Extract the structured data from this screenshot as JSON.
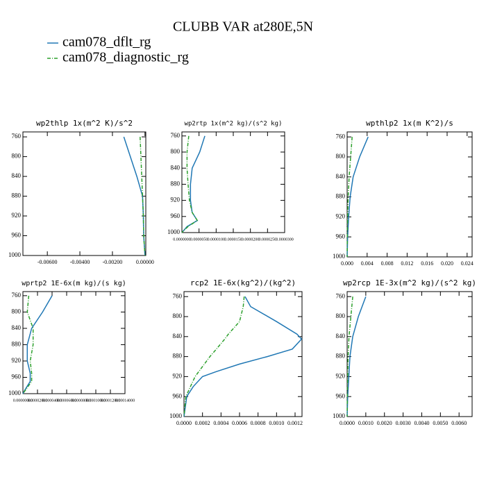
{
  "title": "CLUBB VAR at280E,5N",
  "legend": [
    {
      "name": "cam078_dflt_rg",
      "color": "#1f77b4",
      "dash": "none"
    },
    {
      "name": "cam078_diagnostic_rg",
      "color": "#2ca02c",
      "dash": "5 2 1 2"
    }
  ],
  "chart_data": [
    {
      "type": "line",
      "title": "wp2thlp  1x(m^2 K)/s^2",
      "y": [
        760,
        800,
        840,
        880,
        920,
        960,
        990,
        1000
      ],
      "ylim": [
        750,
        1000
      ],
      "y_reversed": true,
      "yticks": [
        760,
        800,
        840,
        880,
        920,
        960,
        1000
      ],
      "xlim": [
        -0.0075,
        5e-05
      ],
      "xticks": [
        {
          "value": -0.006,
          "label": "-0.00600"
        },
        {
          "value": -0.004,
          "label": "-0.00400"
        },
        {
          "value": -0.002,
          "label": "-0.00200"
        },
        {
          "value": 0,
          "label": "0.00000"
        }
      ],
      "series": [
        {
          "values": [
            -0.0013,
            -0.0009,
            -0.0005,
            -0.00015,
            -0.0001,
            -8e-05,
            -2e-05,
            0
          ]
        },
        {
          "values": [
            -0.0003,
            -0.00025,
            -0.0002,
            -0.00015,
            -0.0001,
            -8e-05,
            -2e-05,
            0
          ]
        }
      ]
    },
    {
      "type": "line",
      "title": "wp2rtp  1x(m^2 kg)/(s^2 kg)",
      "y": [
        760,
        800,
        840,
        880,
        920,
        950,
        970,
        985,
        995,
        1000
      ],
      "ylim": [
        750,
        1000
      ],
      "y_reversed": true,
      "yticks": [
        760,
        800,
        840,
        880,
        920,
        960,
        1000
      ],
      "xlim": [
        0,
        3e-05
      ],
      "xticks": [
        {
          "value": 0,
          "label": "0.0000000"
        },
        {
          "value": 5e-06,
          "label": "0.0000050"
        },
        {
          "value": 1e-05,
          "label": "0.0000100"
        },
        {
          "value": 1.5e-05,
          "label": "0.0000150"
        },
        {
          "value": 2e-05,
          "label": "0.0000200"
        },
        {
          "value": 2.5e-05,
          "label": "0.0000250"
        },
        {
          "value": 3e-05,
          "label": "0.0000300"
        }
      ],
      "series": [
        {
          "values": [
            6.7e-06,
            5.2e-06,
            3e-06,
            2.5e-06,
            2.5e-06,
            3e-06,
            4.5e-06,
            1.5e-06,
            5e-07,
            0
          ]
        },
        {
          "values": [
            2e-06,
            1.5e-06,
            1.5e-06,
            1.8e-06,
            2.2e-06,
            3e-06,
            4.5e-06,
            1.8e-06,
            5e-07,
            0
          ]
        }
      ]
    },
    {
      "type": "line",
      "title": "wpthlp2  1x(m K^2)/s",
      "y": [
        760,
        800,
        840,
        880,
        920,
        960,
        1000
      ],
      "ylim": [
        750,
        1000
      ],
      "y_reversed": true,
      "yticks": [
        760,
        800,
        840,
        880,
        920,
        960,
        1000
      ],
      "xlim": [
        0,
        0.025
      ],
      "xticks": [
        {
          "value": 0,
          "label": "0.000"
        },
        {
          "value": 0.004,
          "label": "0.004"
        },
        {
          "value": 0.008,
          "label": "0.008"
        },
        {
          "value": 0.012,
          "label": "0.012"
        },
        {
          "value": 0.016,
          "label": "0.016"
        },
        {
          "value": 0.02,
          "label": "0.020"
        },
        {
          "value": 0.024,
          "label": "0.024"
        }
      ],
      "series": [
        {
          "values": [
            0.0042,
            0.0025,
            0.0012,
            0.0006,
            0.0003,
            0.0001,
            0
          ]
        },
        {
          "values": [
            0.001,
            0.0007,
            0.0004,
            0.0002,
            0.0001,
            3e-05,
            0
          ]
        }
      ]
    },
    {
      "type": "line",
      "title": "wprtp2  1E-6x(m kg)/(s kg)",
      "y": [
        760,
        800,
        840,
        880,
        920,
        950,
        970,
        990,
        1000
      ],
      "ylim": [
        750,
        1000
      ],
      "y_reversed": true,
      "yticks": [
        760,
        800,
        840,
        880,
        920,
        960,
        1000
      ],
      "xlim": [
        0,
        0.00014
      ],
      "xticks": [
        {
          "value": 0,
          "label": "0.00000000"
        },
        {
          "value": 2e-05,
          "label": "0.00002000"
        },
        {
          "value": 4e-05,
          "label": "0.00004000"
        },
        {
          "value": 6e-05,
          "label": "0.00006000"
        },
        {
          "value": 8e-05,
          "label": "0.00008000"
        },
        {
          "value": 0.0001,
          "label": "0.00010000"
        },
        {
          "value": 0.00012,
          "label": "0.00012000"
        },
        {
          "value": 0.00014,
          "label": "0.00014000"
        }
      ],
      "series": [
        {
          "values": [
            4e-05,
            2.7e-05,
            1.2e-05,
            6e-06,
            6e-06,
            1e-05,
            1e-05,
            3e-06,
            0
          ]
        },
        {
          "values": [
            8e-06,
            6e-06,
            1.4e-05,
            1.4e-05,
            1e-05,
            1.2e-05,
            1.2e-05,
            4e-06,
            0
          ]
        }
      ]
    },
    {
      "type": "line",
      "title": "rcp2  1E-6x(kg^2)/(kg^2)",
      "y": [
        760,
        780,
        810,
        835,
        845,
        865,
        880,
        895,
        910,
        920,
        940,
        960,
        1000
      ],
      "ylim": [
        750,
        1000
      ],
      "y_reversed": true,
      "yticks": [
        760,
        800,
        840,
        880,
        920,
        960,
        1000
      ],
      "xlim": [
        0,
        0.001275
      ],
      "xticks": [
        {
          "value": 0,
          "label": "0.0000"
        },
        {
          "value": 0.0002,
          "label": "0.0002"
        },
        {
          "value": 0.0004,
          "label": "0.0004"
        },
        {
          "value": 0.0006,
          "label": "0.0006"
        },
        {
          "value": 0.0008,
          "label": "0.0008"
        },
        {
          "value": 0.001,
          "label": "0.0010"
        },
        {
          "value": 0.0012,
          "label": "0.0012"
        }
      ],
      "series": [
        {
          "values": [
            0.00066,
            0.00072,
            0.001,
            0.00122,
            0.00127,
            0.00117,
            0.0009,
            0.0006,
            0.00035,
            0.0002,
            0.0001,
            3e-05,
            0
          ]
        },
        {
          "values": [
            0.00065,
            0.00064,
            0.0006,
            0.00048,
            0.00044,
            0.00035,
            0.00028,
            0.00022,
            0.00016,
            0.00012,
            7e-05,
            2e-05,
            0
          ]
        }
      ]
    },
    {
      "type": "line",
      "title": "wp2rcp  1E-3x(m^2 kg)/(s^2 kg)",
      "y": [
        760,
        800,
        840,
        880,
        960,
        1000
      ],
      "ylim": [
        750,
        1000
      ],
      "y_reversed": true,
      "yticks": [
        760,
        800,
        840,
        880,
        920,
        960,
        1000
      ],
      "xlim": [
        0,
        0.0067
      ],
      "xticks": [
        {
          "value": 0,
          "label": "0.0000"
        },
        {
          "value": 0.001,
          "label": "0.0010"
        },
        {
          "value": 0.002,
          "label": "0.0020"
        },
        {
          "value": 0.003,
          "label": "0.0030"
        },
        {
          "value": 0.004,
          "label": "0.0040"
        },
        {
          "value": 0.005,
          "label": "0.0050"
        },
        {
          "value": 0.006,
          "label": "0.0060"
        }
      ],
      "series": [
        {
          "values": [
            0.001,
            0.0006,
            0.0003,
            0.00015,
            3e-05,
            0
          ]
        },
        {
          "values": [
            0.0003,
            0.0002,
            0.0001,
            5e-05,
            1e-05,
            0
          ]
        }
      ]
    }
  ]
}
